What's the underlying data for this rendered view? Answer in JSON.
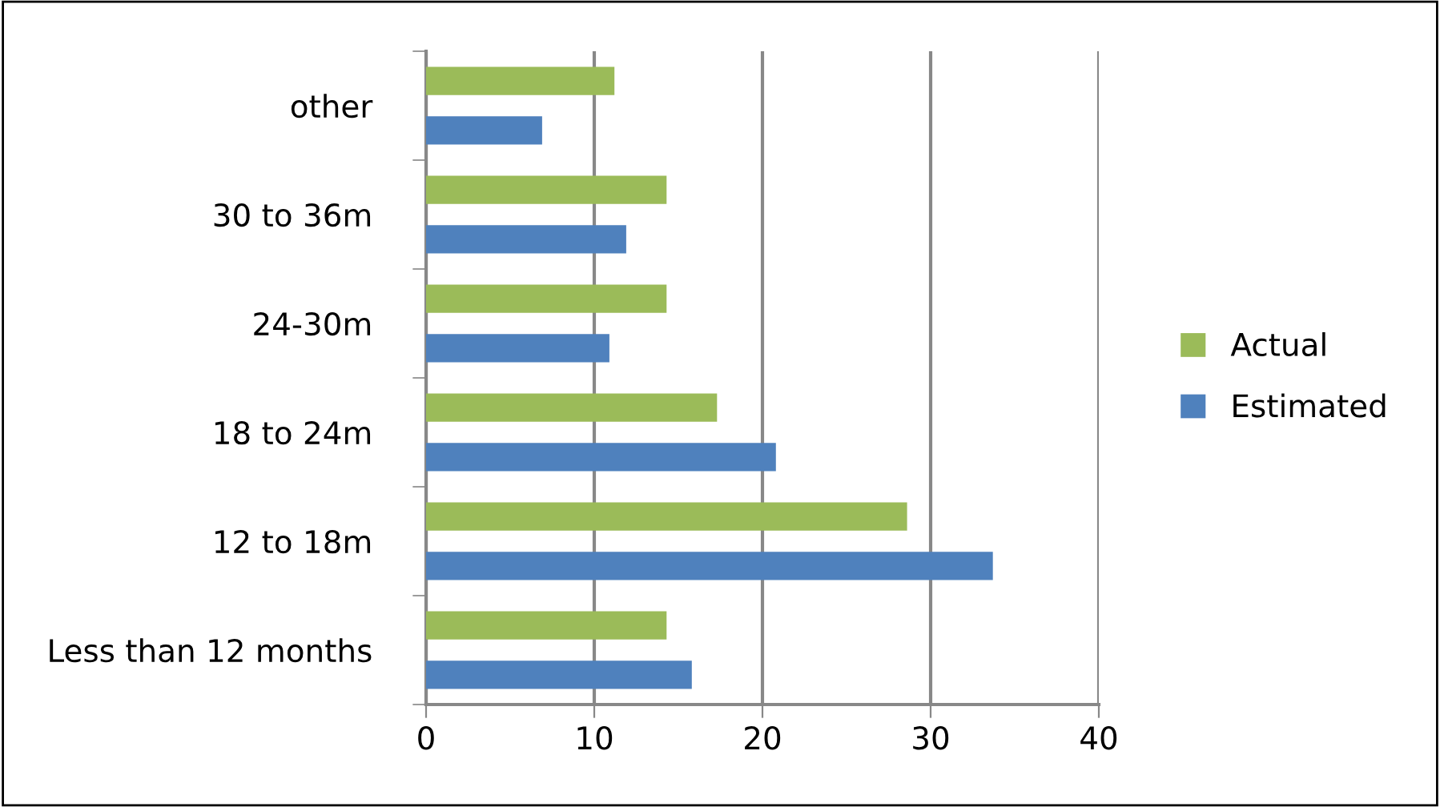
{
  "chart_data": {
    "type": "bar",
    "orientation": "horizontal",
    "categories": [
      "other",
      "30 to 36m",
      "24-30m",
      "18 to 24m",
      "12 to 18m",
      "Less than 12 months"
    ],
    "series": [
      {
        "name": "Actual",
        "color": "#9bbb59",
        "values": [
          11.2,
          14.3,
          14.3,
          17.3,
          28.6,
          14.3
        ]
      },
      {
        "name": "Estimated",
        "color": "#4f81bd",
        "values": [
          6.9,
          11.9,
          10.9,
          20.8,
          33.7,
          15.8
        ]
      }
    ],
    "xlim": [
      0,
      40
    ],
    "xticks": [
      0,
      10,
      20,
      30,
      40
    ],
    "grid": "x",
    "legend": "right"
  }
}
